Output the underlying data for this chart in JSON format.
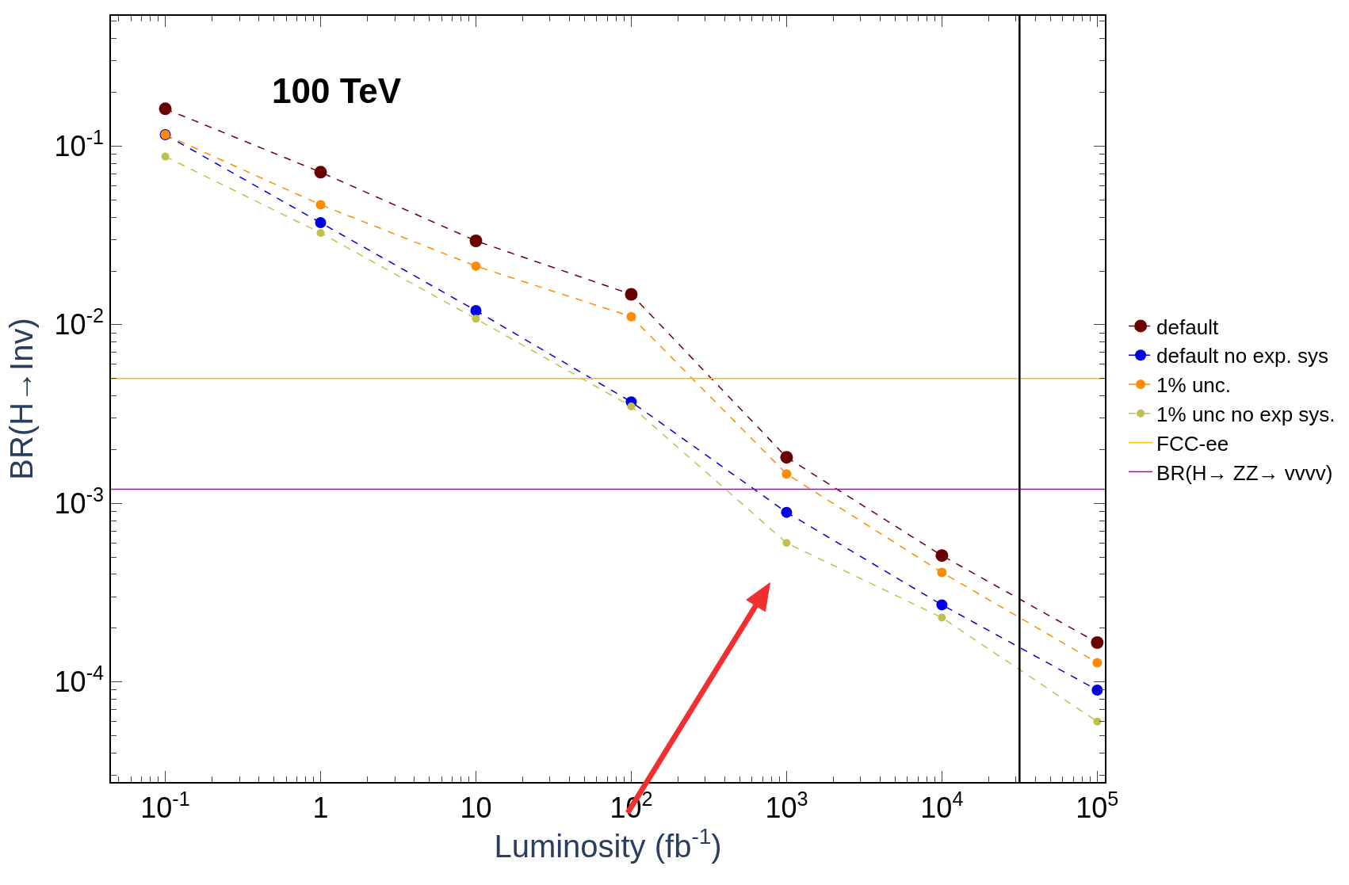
{
  "chart_data": {
    "type": "line",
    "xlabel": "Luminosity (fb$^{-1}$)",
    "ylabel": "BR(H→Inv)",
    "annotations": [
      "100 TeV"
    ],
    "x": [
      0.1,
      1,
      10,
      100,
      1000,
      10000,
      100000
    ],
    "series": [
      {
        "name": "default",
        "color": "#6b0000",
        "values": [
          0.162,
          0.0715,
          0.0295,
          0.0148,
          0.00181,
          0.00051,
          0.000166
        ]
      },
      {
        "name": "default no exp. sys",
        "color": "#0000e0",
        "values": [
          0.116,
          0.0373,
          0.012,
          0.0037,
          0.00089,
          0.00027,
          9e-05
        ]
      },
      {
        "name": "1% unc.",
        "color": "#ff8c00",
        "values": [
          0.116,
          0.047,
          0.0213,
          0.0111,
          0.00146,
          0.00041,
          0.000128
        ]
      },
      {
        "name": "1% unc no exp sys.",
        "color": "#c0c050",
        "values": [
          0.0875,
          0.0327,
          0.0108,
          0.00349,
          0.0006,
          0.000229,
          6e-05
        ]
      }
    ],
    "ref_lines": [
      {
        "axis": "y",
        "value": 0.005,
        "label": "FCC-ee",
        "color": "#ffc000"
      },
      {
        "axis": "y",
        "value": 0.0012,
        "label": "BR(H→ ZZ→ vvvv)",
        "color": "#b000c0"
      },
      {
        "axis": "x",
        "value": 31600,
        "color": "#000000"
      }
    ],
    "log": "xy",
    "marker": "circle",
    "line_style": "dashed",
    "legend": "right",
    "xlim": [
      0.0447,
      112000
    ],
    "ylim": [
      2.75e-05,
      0.537
    ],
    "xticks": [
      {
        "value": 0.1,
        "label": "10$^{-1}$"
      },
      1,
      10,
      {
        "value": 100,
        "label": "10$^{2}$"
      },
      {
        "value": 1000,
        "label": "10$^{3}$"
      },
      {
        "value": 10000,
        "label": "10$^{4}$"
      },
      {
        "value": 100000,
        "label": "10$^{5}$"
      }
    ],
    "yticks": [
      {
        "value": 0.0001,
        "label": "10$^{-4}$"
      },
      {
        "value": 0.001,
        "label": "10$^{-3}$"
      },
      {
        "value": 0.01,
        "label": "10$^{-2}$"
      },
      {
        "value": 0.1,
        "label": "10$^{-1}$"
      }
    ]
  }
}
